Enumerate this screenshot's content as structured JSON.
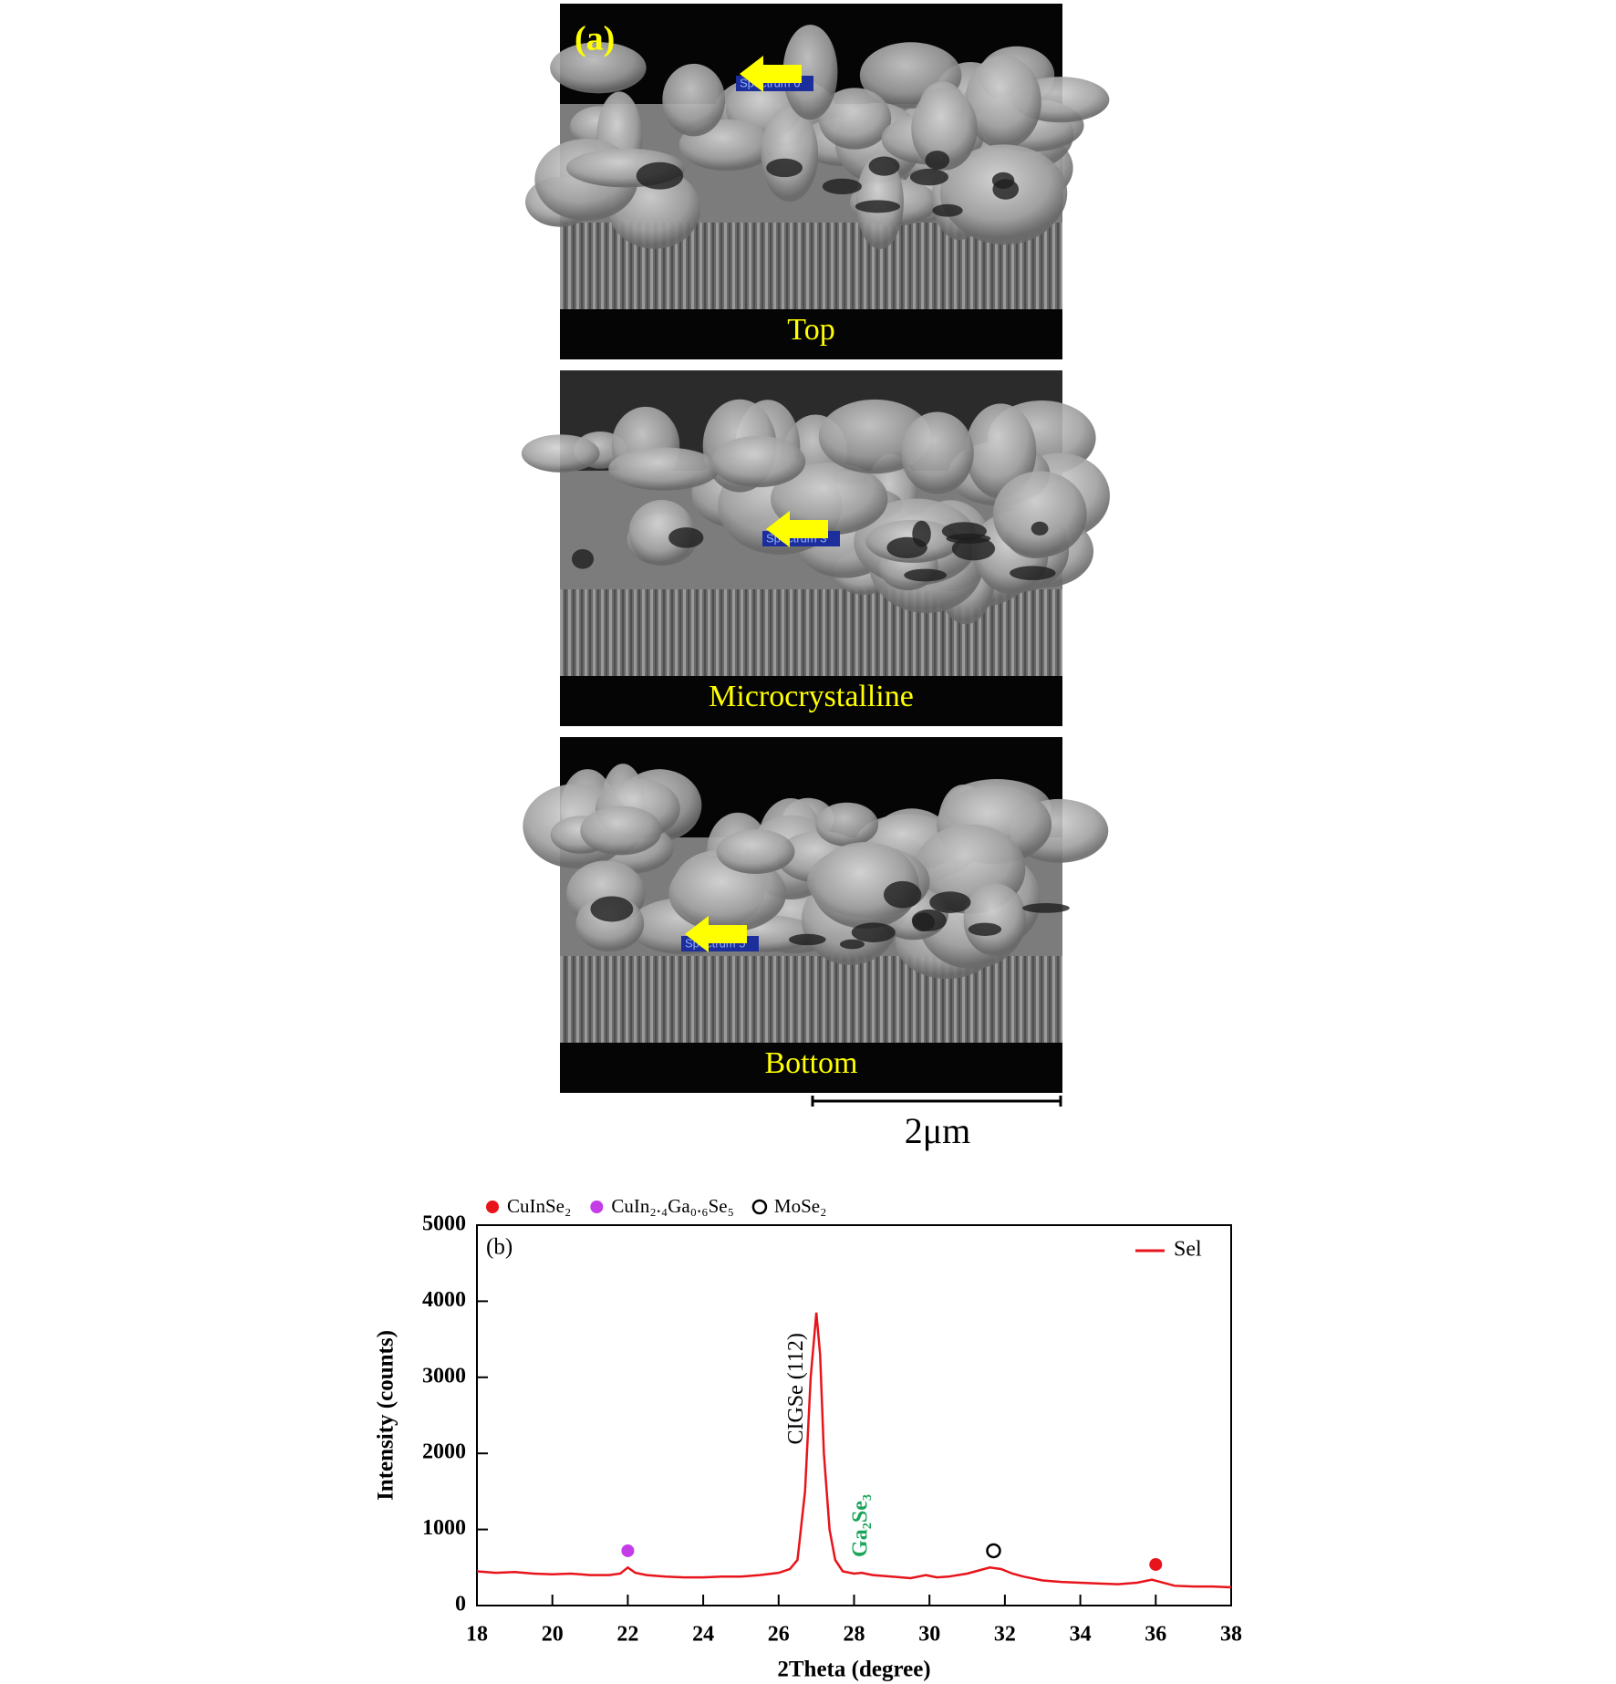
{
  "figure_a": {
    "tag": "(a)",
    "panels": [
      {
        "label": "Top",
        "spectrum": "Spectrum 6"
      },
      {
        "label": "Microcrystalline",
        "spectrum": "Spectrum 3"
      },
      {
        "label": "Bottom",
        "spectrum": "Spectrum 5"
      }
    ],
    "scale_bar": "2μm"
  },
  "chart_data": {
    "type": "line",
    "panel_tag": "(b)",
    "xlabel": "2Theta (degree)",
    "ylabel": "Intensity (counts)",
    "xlim": [
      18,
      38
    ],
    "xticks": [
      18,
      20,
      22,
      24,
      26,
      28,
      30,
      32,
      34,
      36,
      38
    ],
    "ylim": [
      0,
      5000
    ],
    "yticks": [
      0,
      1000,
      2000,
      3000,
      4000,
      5000
    ],
    "legend": "upper right",
    "series": [
      {
        "name": "Sel",
        "color": "#e8141b",
        "x": [
          18,
          18.5,
          19,
          19.5,
          20,
          20.5,
          21,
          21.5,
          21.8,
          22,
          22.2,
          22.5,
          23,
          23.5,
          24,
          24.5,
          25,
          25.5,
          26,
          26.3,
          26.5,
          26.7,
          26.85,
          27.0,
          27.1,
          27.2,
          27.35,
          27.5,
          27.7,
          28,
          28.2,
          28.5,
          29,
          29.5,
          29.9,
          30.2,
          30.5,
          31,
          31.3,
          31.6,
          31.9,
          32.2,
          32.5,
          33,
          33.5,
          34,
          34.5,
          35,
          35.5,
          35.9,
          36.2,
          36.5,
          37,
          37.5,
          38
        ],
        "values": [
          450,
          430,
          440,
          420,
          410,
          420,
          400,
          400,
          420,
          500,
          430,
          400,
          380,
          370,
          370,
          380,
          380,
          400,
          430,
          480,
          600,
          1500,
          3000,
          3850,
          3300,
          2000,
          1000,
          600,
          450,
          420,
          430,
          400,
          380,
          360,
          400,
          370,
          380,
          420,
          460,
          500,
          480,
          420,
          380,
          330,
          310,
          300,
          290,
          280,
          300,
          340,
          300,
          260,
          250,
          250,
          240
        ]
      }
    ],
    "phases": [
      {
        "name": "CuInSe₂",
        "color": "#e8141b",
        "marker": "filled",
        "x": [
          36
        ],
        "y": [
          540
        ]
      },
      {
        "name": "CuIn₂.₄Ga₀.₆Se₅",
        "color": "#c43be8",
        "marker": "filled",
        "x": [
          22
        ],
        "y": [
          720
        ]
      },
      {
        "name": "MoSe₂",
        "color": "#000000",
        "marker": "open",
        "x": [
          31.7
        ],
        "y": [
          720
        ]
      }
    ],
    "annotations": [
      {
        "text": "CIGSe (112)",
        "x": 26.5,
        "y": 2850,
        "color": "#000000"
      },
      {
        "text": "Ga₂Se₃",
        "x": 28.2,
        "y": 1050,
        "color": "#1aa55a"
      }
    ]
  }
}
